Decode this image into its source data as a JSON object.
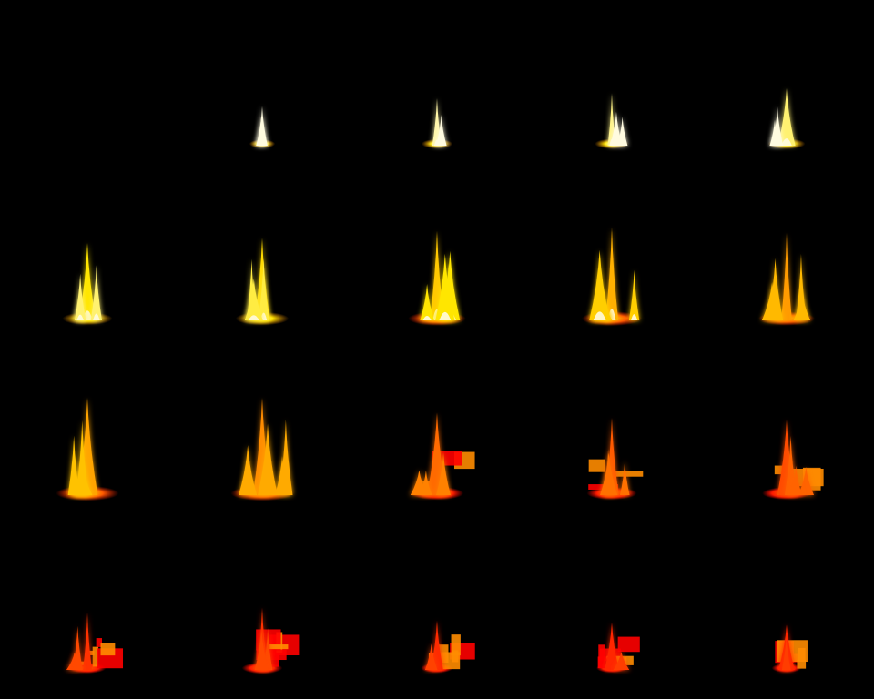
{
  "sprite_sheet": {
    "background": "#000000",
    "columns": 5,
    "rows": 4,
    "frame_count": 20,
    "empty_frames": [
      0
    ],
    "palette": {
      "white_core": "#fffbe0",
      "yellow": "#ffe600",
      "orange": "#ff8c00",
      "red": "#ff1a00",
      "deep_red": "#ff0000",
      "green_artifact": "#0a8a00"
    },
    "frames": [
      {
        "index": 0,
        "stage": "empty",
        "intensity": 0.0,
        "heat": 0.0
      },
      {
        "index": 1,
        "stage": "ignite",
        "intensity": 0.12,
        "heat": 1.0
      },
      {
        "index": 2,
        "stage": "ignite",
        "intensity": 0.2,
        "heat": 0.95
      },
      {
        "index": 3,
        "stage": "ignite",
        "intensity": 0.25,
        "heat": 0.92
      },
      {
        "index": 4,
        "stage": "ignite",
        "intensity": 0.3,
        "heat": 0.9
      },
      {
        "index": 5,
        "stage": "burst",
        "intensity": 0.5,
        "heat": 0.8
      },
      {
        "index": 6,
        "stage": "burst",
        "intensity": 0.55,
        "heat": 0.76
      },
      {
        "index": 7,
        "stage": "burst",
        "intensity": 0.62,
        "heat": 0.7
      },
      {
        "index": 8,
        "stage": "burst",
        "intensity": 0.66,
        "heat": 0.62
      },
      {
        "index": 9,
        "stage": "burst",
        "intensity": 0.6,
        "heat": 0.55
      },
      {
        "index": 10,
        "stage": "peak",
        "intensity": 0.7,
        "heat": 0.58
      },
      {
        "index": 11,
        "stage": "peak",
        "intensity": 0.7,
        "heat": 0.5
      },
      {
        "index": 12,
        "stage": "decay",
        "intensity": 0.55,
        "heat": 0.35
      },
      {
        "index": 13,
        "stage": "decay",
        "intensity": 0.5,
        "heat": 0.28
      },
      {
        "index": 14,
        "stage": "decay",
        "intensity": 0.48,
        "heat": 0.22
      },
      {
        "index": 15,
        "stage": "fade",
        "intensity": 0.3,
        "heat": 0.1
      },
      {
        "index": 16,
        "stage": "fade",
        "intensity": 0.35,
        "heat": 0.1
      },
      {
        "index": 17,
        "stage": "fade",
        "intensity": 0.22,
        "heat": 0.08
      },
      {
        "index": 18,
        "stage": "fade",
        "intensity": 0.2,
        "heat": 0.05
      },
      {
        "index": 19,
        "stage": "fade",
        "intensity": 0.18,
        "heat": 0.05
      }
    ]
  }
}
